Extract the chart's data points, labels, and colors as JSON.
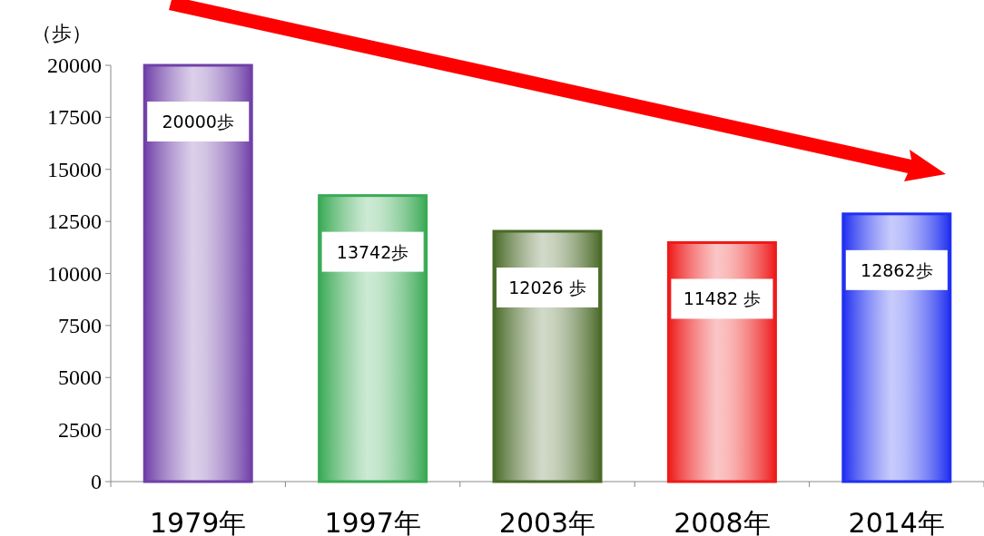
{
  "chart_data": {
    "type": "bar",
    "ylabel": "（歩）",
    "categories": [
      "1979年",
      "1997年",
      "2003年",
      "2008年",
      "2014年"
    ],
    "values": [
      20000,
      13742,
      12026,
      11482,
      12862
    ],
    "colors": [
      "#7040a8",
      "#3aaa55",
      "#4a6a28",
      "#ee1a1a",
      "#2030f0"
    ],
    "value_labels": [
      "20000歩",
      "13742歩",
      "12026 歩",
      "11482 歩",
      "12862歩"
    ],
    "ylim": [
      0,
      20000
    ],
    "yticks": [
      0,
      2500,
      5000,
      7500,
      10000,
      12500,
      15000,
      17500,
      20000
    ],
    "grid": false
  }
}
